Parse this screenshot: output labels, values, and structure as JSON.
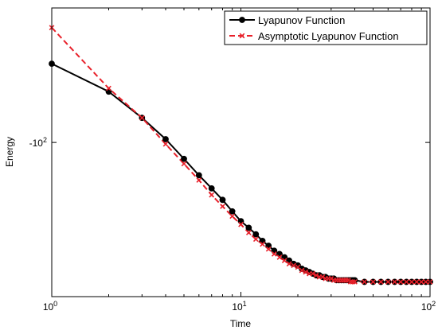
{
  "chart_data": {
    "type": "line",
    "xlabel": "Time",
    "ylabel": "Energy",
    "xscale": "log",
    "xlim": [
      1,
      100
    ],
    "x_ticks": [
      {
        "value": 1,
        "base": "10",
        "exp": "0"
      },
      {
        "value": 10,
        "base": "10",
        "exp": "1"
      },
      {
        "value": 100,
        "base": "10",
        "exp": "2"
      }
    ],
    "y_tick": {
      "value": -100,
      "base": "-10",
      "exp": "2"
    },
    "ylim": [
      -100.94,
      -99.18
    ],
    "grid": false,
    "legend_position": "top-right",
    "x": [
      1,
      2,
      3,
      4,
      5,
      6,
      7,
      8,
      9,
      10,
      11,
      12,
      13,
      14,
      15,
      16,
      17,
      18,
      19,
      20,
      21,
      22,
      23,
      24,
      25,
      26,
      27,
      28,
      29,
      30,
      31,
      32,
      33,
      34,
      35,
      36,
      37,
      38,
      39,
      40,
      45,
      50,
      55,
      60,
      65,
      70,
      75,
      80,
      85,
      90,
      95,
      100
    ],
    "series": [
      {
        "name": "Lyapunov Function",
        "color": "#000000",
        "line_style": "solid",
        "marker": "circle",
        "values": [
          -99.52,
          -99.69,
          -99.85,
          -99.98,
          -100.1,
          -100.2,
          -100.28,
          -100.35,
          -100.42,
          -100.48,
          -100.52,
          -100.56,
          -100.6,
          -100.63,
          -100.66,
          -100.68,
          -100.7,
          -100.72,
          -100.74,
          -100.75,
          -100.77,
          -100.78,
          -100.79,
          -100.8,
          -100.81,
          -100.81,
          -100.82,
          -100.82,
          -100.83,
          -100.83,
          -100.83,
          -100.84,
          -100.84,
          -100.84,
          -100.84,
          -100.84,
          -100.84,
          -100.84,
          -100.84,
          -100.84,
          -100.85,
          -100.85,
          -100.85,
          -100.85,
          -100.85,
          -100.85,
          -100.85,
          -100.85,
          -100.85,
          -100.85,
          -100.85,
          -100.85
        ]
      },
      {
        "name": "Asymptotic Lyapunov Function",
        "color": "#e8202a",
        "line_style": "dashed",
        "marker": "x",
        "values": [
          -99.3,
          -99.67,
          -99.85,
          -100.01,
          -100.13,
          -100.23,
          -100.32,
          -100.39,
          -100.45,
          -100.5,
          -100.55,
          -100.59,
          -100.62,
          -100.65,
          -100.68,
          -100.7,
          -100.72,
          -100.74,
          -100.75,
          -100.76,
          -100.78,
          -100.79,
          -100.8,
          -100.8,
          -100.81,
          -100.82,
          -100.82,
          -100.83,
          -100.83,
          -100.83,
          -100.84,
          -100.84,
          -100.84,
          -100.84,
          -100.84,
          -100.84,
          -100.84,
          -100.85,
          -100.85,
          -100.85,
          -100.85,
          -100.85,
          -100.85,
          -100.85,
          -100.85,
          -100.85,
          -100.85,
          -100.85,
          -100.85,
          -100.85,
          -100.85,
          -100.85
        ]
      }
    ]
  }
}
